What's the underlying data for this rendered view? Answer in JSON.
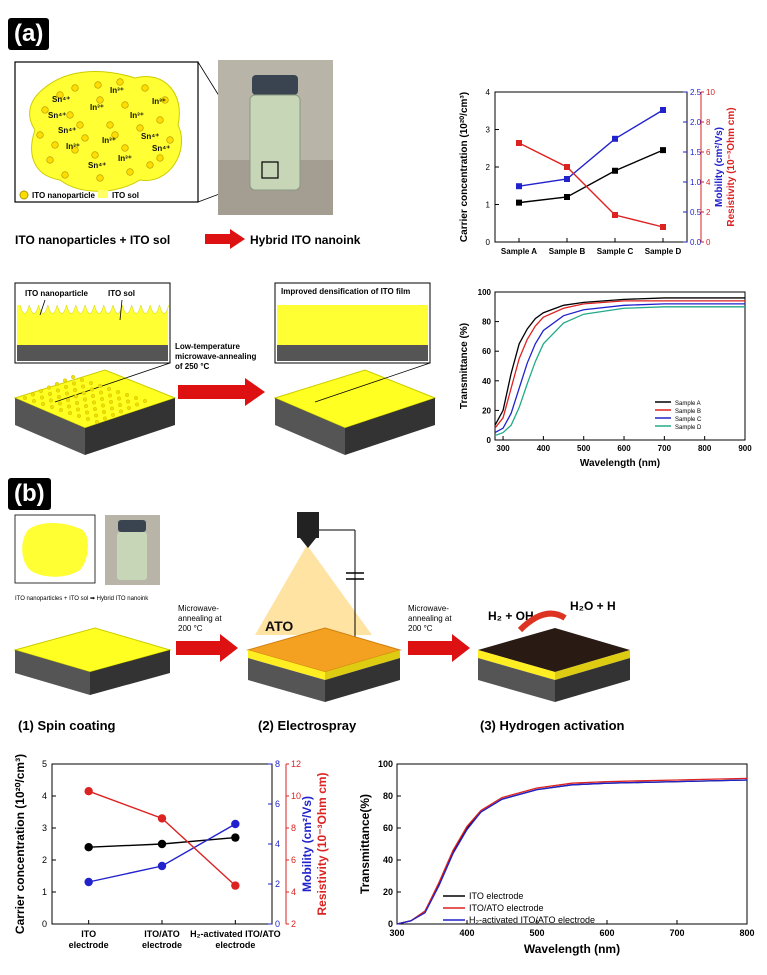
{
  "panels": {
    "a_label": "(a)",
    "b_label": "(b)"
  },
  "a_schematic": {
    "ions": [
      "In³⁺",
      "Sn⁴⁺",
      "In³⁺",
      "In³⁺",
      "In³⁺",
      "Sn⁴⁺",
      "In³⁺",
      "Sn⁴⁺",
      "Sn⁴⁺",
      "Sn⁴⁺",
      "In³⁺",
      "In³⁺",
      "Sn⁴⁺"
    ],
    "legend_nanoparticle": "ITO nanoparticle",
    "legend_sol": "ITO sol",
    "caption_left": "ITO nanoparticles + ITO sol",
    "caption_right": "Hybrid ITO nanoink",
    "film_label_nanoparticle": "ITO nanoparticle",
    "film_label_sol": "ITO sol",
    "process_line1": "Low-temperature",
    "process_line2": "microwave-annealing",
    "process_line3": "of 250 °C",
    "improved_label": "Improved densification of ITO film"
  },
  "b_schematic": {
    "mini_caption": "ITO nanoparticles + ITO sol ➡ Hybrid ITO nanoink",
    "step1_arrow_l1": "Microwave-",
    "step1_arrow_l2": "annealing at",
    "step1_arrow_l3": "200 °C",
    "step2_arrow_l1": "Microwave-",
    "step2_arrow_l2": "annealing at",
    "step2_arrow_l3": "200 °C",
    "ato_label": "ATO",
    "reaction_left": "H₂ + OH",
    "reaction_right": "H₂O + H",
    "step1": "(1) Spin coating",
    "step2": "(2) Electrospray",
    "step3": "(3) Hydrogen activation"
  },
  "chart_data": [
    {
      "id": "a-electrical",
      "type": "line",
      "categories": [
        "Sample A",
        "Sample B",
        "Sample C",
        "Sample D"
      ],
      "series": [
        {
          "axis": "left",
          "color": "#000000",
          "values": [
            1.05,
            1.2,
            1.9,
            2.45
          ]
        },
        {
          "axis": "mobility",
          "color": "#2222cc",
          "values": [
            0.93,
            1.05,
            1.72,
            2.2
          ]
        },
        {
          "axis": "resistivity",
          "color": "#dd2222",
          "values": [
            6.6,
            5.0,
            1.8,
            1.0
          ]
        }
      ],
      "ylabel": "Carrier concentration (10²⁰/cm³)",
      "ylim": [
        0,
        4
      ],
      "yticks": [
        "0",
        "1",
        "2",
        "3",
        "4"
      ],
      "y2label": "Mobility (cm²/Vs)",
      "y2lim": [
        0,
        2.5
      ],
      "y2ticks": [
        "0.0",
        "0.5",
        "1.0",
        "1.5",
        "2.0",
        "2.5"
      ],
      "y3label": "Resistivity (10⁻³Ohm cm)",
      "y3lim": [
        0,
        10
      ],
      "y3ticks": [
        "0",
        "2",
        "4",
        "6",
        "8",
        "10"
      ]
    },
    {
      "id": "a-transmittance",
      "type": "line",
      "xlabel": "Wavelength (nm)",
      "ylabel": "Transmittance (%)",
      "xlim": [
        280,
        900
      ],
      "ylim": [
        0,
        100
      ],
      "xticks": [
        "300",
        "400",
        "500",
        "600",
        "700",
        "800",
        "900"
      ],
      "yticks": [
        "0",
        "20",
        "40",
        "60",
        "80",
        "100"
      ],
      "legend": "bottom-right",
      "series": [
        {
          "name": "Sample A",
          "color": "#000000",
          "x": [
            280,
            300,
            320,
            340,
            360,
            380,
            400,
            450,
            500,
            600,
            700,
            800,
            900
          ],
          "y": [
            10,
            20,
            45,
            65,
            75,
            82,
            86,
            91,
            93,
            95,
            96,
            96,
            96
          ]
        },
        {
          "name": "Sample B",
          "color": "#dd2222",
          "x": [
            280,
            300,
            320,
            340,
            360,
            380,
            400,
            450,
            500,
            600,
            700,
            800,
            900
          ],
          "y": [
            8,
            15,
            35,
            55,
            68,
            77,
            83,
            89,
            92,
            94,
            94,
            94,
            94
          ]
        },
        {
          "name": "Sample C",
          "color": "#2222cc",
          "x": [
            280,
            300,
            320,
            340,
            360,
            380,
            400,
            450,
            500,
            600,
            700,
            800,
            900
          ],
          "y": [
            5,
            8,
            18,
            35,
            52,
            65,
            74,
            84,
            88,
            91,
            92,
            92,
            92
          ]
        },
        {
          "name": "Sample D",
          "color": "#22aa88",
          "x": [
            280,
            300,
            320,
            340,
            360,
            380,
            400,
            450,
            500,
            600,
            700,
            800,
            900
          ],
          "y": [
            3,
            5,
            10,
            22,
            38,
            53,
            65,
            79,
            85,
            89,
            90,
            90,
            90
          ]
        }
      ]
    },
    {
      "id": "b-electrical",
      "type": "line",
      "categories": [
        "ITO\nelectrode",
        "ITO/ATO\nelectrode",
        "H₂-activated ITO/ATO\nelectrode"
      ],
      "series": [
        {
          "axis": "left",
          "color": "#000000",
          "values": [
            2.4,
            2.5,
            2.7
          ]
        },
        {
          "axis": "mobility",
          "color": "#2222cc",
          "values": [
            2.1,
            2.9,
            5.0
          ]
        },
        {
          "axis": "resistivity",
          "color": "#dd2222",
          "values": [
            10.3,
            8.6,
            4.4
          ]
        }
      ],
      "ylabel": "Carrier concentration (10²⁰/cm³)",
      "ylim": [
        0,
        5
      ],
      "yticks": [
        "0",
        "1",
        "2",
        "3",
        "4",
        "5"
      ],
      "y2label": "Mobility (cm²/Vs)",
      "y2lim": [
        0,
        8
      ],
      "y2ticks": [
        "0",
        "2",
        "4",
        "6",
        "8"
      ],
      "y3label": "Resistivity (10⁻³Ohm cm)",
      "y3lim": [
        2,
        12
      ],
      "y3ticks": [
        "2",
        "4",
        "6",
        "8",
        "10",
        "12"
      ]
    },
    {
      "id": "b-transmittance",
      "type": "line",
      "xlabel": "Wavelength (nm)",
      "ylabel": "Transmittance(%)",
      "xlim": [
        300,
        800
      ],
      "ylim": [
        0,
        100
      ],
      "xticks": [
        "300",
        "400",
        "500",
        "600",
        "700",
        "800"
      ],
      "yticks": [
        "0",
        "20",
        "40",
        "60",
        "80",
        "100"
      ],
      "legend": "bottom-right",
      "series": [
        {
          "name": "ITO electrode",
          "color": "#000000",
          "x": [
            300,
            320,
            340,
            360,
            380,
            400,
            420,
            450,
            500,
            550,
            600,
            700,
            800
          ],
          "y": [
            0,
            2,
            8,
            25,
            45,
            60,
            70,
            78,
            84,
            87,
            88,
            89,
            90
          ]
        },
        {
          "name": "ITO/ATO electrode",
          "color": "#dd2222",
          "x": [
            300,
            320,
            340,
            360,
            380,
            400,
            420,
            450,
            500,
            550,
            600,
            700,
            800
          ],
          "y": [
            0,
            2,
            8,
            26,
            46,
            61,
            71,
            79,
            85,
            88,
            89,
            90,
            91
          ]
        },
        {
          "name": "H₂-activated ITO/ATO electrode",
          "color": "#2222cc",
          "x": [
            300,
            320,
            340,
            360,
            380,
            400,
            420,
            450,
            500,
            550,
            600,
            700,
            800
          ],
          "y": [
            0,
            2,
            7,
            24,
            44,
            59,
            70,
            78,
            84,
            87,
            88,
            89,
            90
          ]
        }
      ]
    }
  ]
}
